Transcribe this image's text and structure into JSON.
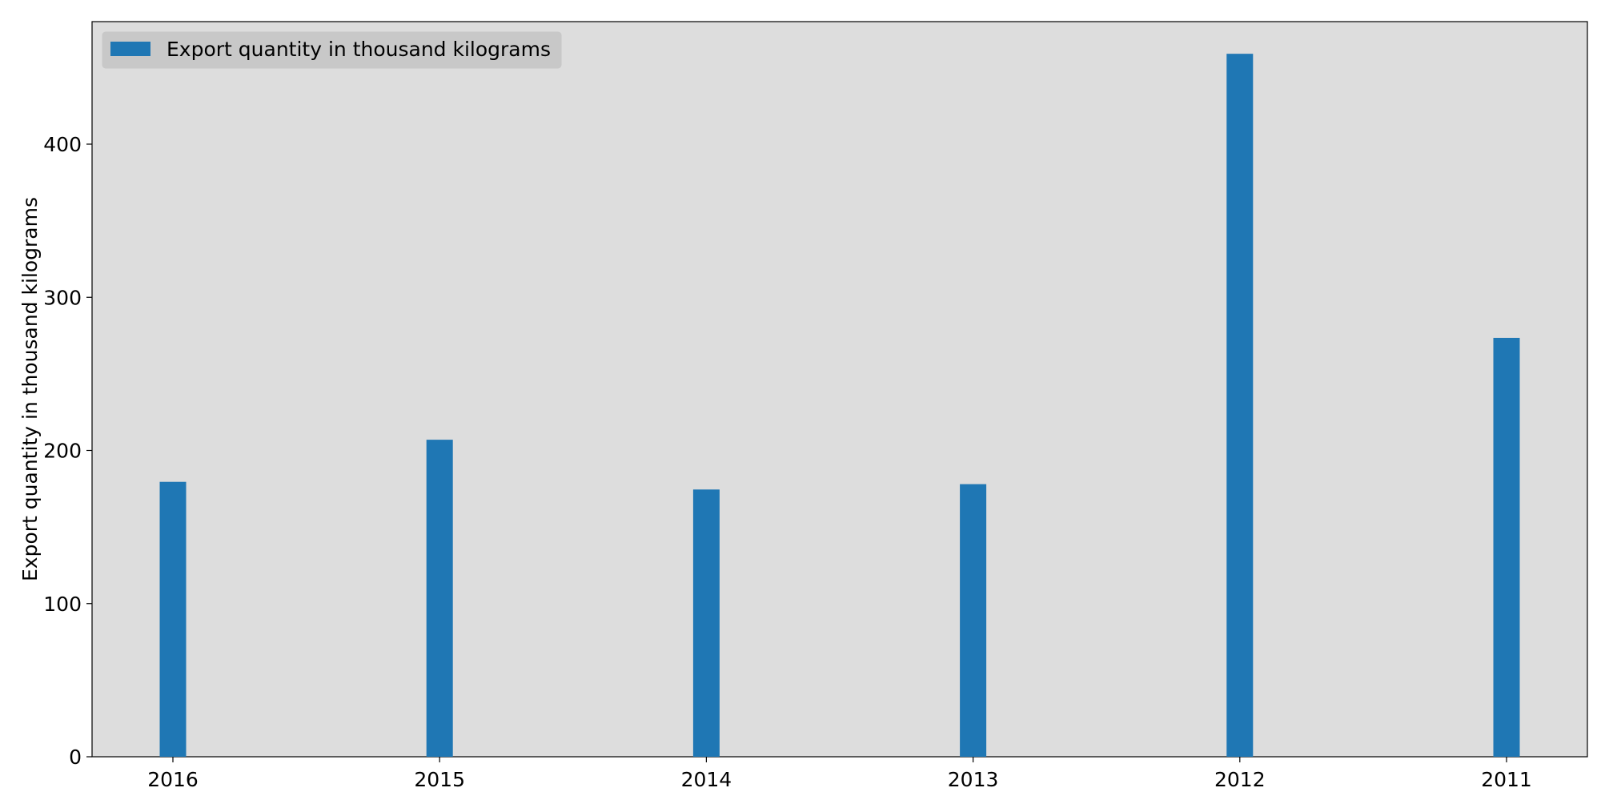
{
  "chart_data": {
    "type": "bar",
    "categories": [
      "2016",
      "2015",
      "2014",
      "2013",
      "2012",
      "2011"
    ],
    "series": [
      {
        "name": "Export quantity in thousand kilograms",
        "values": [
          179.5,
          207.0,
          174.5,
          178.0,
          459.0,
          273.5
        ]
      }
    ],
    "xlabel": "",
    "ylabel": "Export quantity in thousand kilograms",
    "ylim": [
      0,
      480
    ],
    "yticks": [
      0,
      100,
      200,
      300,
      400
    ],
    "legend_position": "top-left",
    "grid": false,
    "colors": {
      "bar": "#1f77b4",
      "plot_background": "#dddddd",
      "legend_background": "#c8c8c8"
    }
  }
}
